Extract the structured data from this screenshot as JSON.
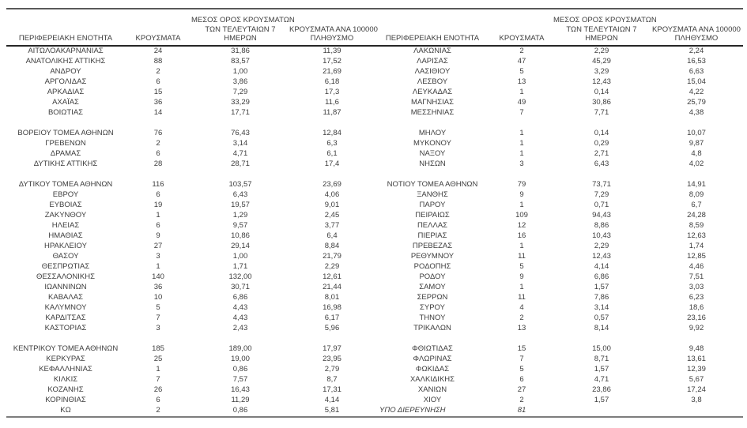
{
  "table": {
    "column_headers": {
      "region": "ΠΕΡΙΦΕΡΕΙΑΚΗ ΕΝΟΤΗΤΑ",
      "cases": "ΚΡΟΥΣΜΑΤΑ",
      "avg7_line1": "ΜΕΣΟΣ ΟΡΟΣ ΚΡΟΥΣΜΑΤΩΝ",
      "avg7_line2": "ΤΩΝ ΤΕΛΕΥΤΑΙΩΝ 7",
      "avg7_line3": "ΗΜΕΡΩΝ",
      "per100k_line1": "ΚΡΟΥΣΜΑΤΑ ΑΝΑ 100000",
      "per100k_line2": "ΠΛΗΘΥΣΜΟ"
    },
    "rows": [
      {
        "left": {
          "region": "ΑΙΤΩΛΟΑΚΑΡΝΑΝΙΑΣ",
          "cases": "24",
          "avg7": "31,86",
          "per100k": "11,39"
        },
        "right": {
          "region": "ΛΑΚΩΝΙΑΣ",
          "cases": "2",
          "avg7": "2,29",
          "per100k": "2,24"
        }
      },
      {
        "left": {
          "region": "ΑΝΑΤΟΛΙΚΗΣ ΑΤΤΙΚΗΣ",
          "cases": "88",
          "avg7": "83,57",
          "per100k": "17,52"
        },
        "right": {
          "region": "ΛΑΡΙΣΑΣ",
          "cases": "47",
          "avg7": "45,29",
          "per100k": "16,53"
        }
      },
      {
        "left": {
          "region": "ΑΝΔΡΟΥ",
          "cases": "2",
          "avg7": "1,00",
          "per100k": "21,69"
        },
        "right": {
          "region": "ΛΑΣΙΘΙΟΥ",
          "cases": "5",
          "avg7": "3,29",
          "per100k": "6,63"
        }
      },
      {
        "left": {
          "region": "ΑΡΓΟΛΙΔΑΣ",
          "cases": "6",
          "avg7": "3,86",
          "per100k": "6,18"
        },
        "right": {
          "region": "ΛΕΣΒΟΥ",
          "cases": "13",
          "avg7": "12,43",
          "per100k": "15,04"
        }
      },
      {
        "left": {
          "region": "ΑΡΚΑΔΙΑΣ",
          "cases": "15",
          "avg7": "7,29",
          "per100k": "17,3"
        },
        "right": {
          "region": "ΛΕΥΚΑΔΑΣ",
          "cases": "1",
          "avg7": "0,14",
          "per100k": "4,22"
        }
      },
      {
        "left": {
          "region": "ΑΧΑΪΑΣ",
          "cases": "36",
          "avg7": "33,29",
          "per100k": "11,6"
        },
        "right": {
          "region": "ΜΑΓΝΗΣΙΑΣ",
          "cases": "49",
          "avg7": "30,86",
          "per100k": "25,79"
        }
      },
      {
        "left": {
          "region": "ΒΟΙΩΤΙΑΣ",
          "cases": "14",
          "avg7": "17,71",
          "per100k": "11,87"
        },
        "right": {
          "region": "ΜΕΣΣΗΝΙΑΣ",
          "cases": "7",
          "avg7": "7,71",
          "per100k": "4,38"
        }
      },
      {
        "separator": true
      },
      {
        "left": {
          "region": "ΒΟΡΕΙΟΥ ΤΟΜΕΑ ΑΘΗΝΩΝ",
          "cases": "76",
          "avg7": "76,43",
          "per100k": "12,84"
        },
        "right": {
          "region": "ΜΗΛΟΥ",
          "cases": "1",
          "avg7": "0,14",
          "per100k": "10,07"
        }
      },
      {
        "left": {
          "region": "ΓΡΕΒΕΝΩΝ",
          "cases": "2",
          "avg7": "3,14",
          "per100k": "6,3"
        },
        "right": {
          "region": "ΜΥΚΟΝΟΥ",
          "cases": "1",
          "avg7": "0,29",
          "per100k": "9,87"
        }
      },
      {
        "left": {
          "region": "ΔΡΑΜΑΣ",
          "cases": "6",
          "avg7": "4,71",
          "per100k": "6,1"
        },
        "right": {
          "region": "ΝΑΞΟΥ",
          "cases": "1",
          "avg7": "2,71",
          "per100k": "4,8"
        }
      },
      {
        "left": {
          "region": "ΔΥΤΙΚΗΣ ΑΤΤΙΚΗΣ",
          "cases": "28",
          "avg7": "28,71",
          "per100k": "17,4"
        },
        "right": {
          "region": "ΝΗΣΩΝ",
          "cases": "3",
          "avg7": "6,43",
          "per100k": "4,02"
        }
      },
      {
        "separator": true
      },
      {
        "left": {
          "region": "ΔΥΤΙΚΟΥ ΤΟΜΕΑ ΑΘΗΝΩΝ",
          "cases": "116",
          "avg7": "103,57",
          "per100k": "23,69"
        },
        "right": {
          "region": "ΝΟΤΙΟΥ ΤΟΜΕΑ ΑΘΗΝΩΝ",
          "cases": "79",
          "avg7": "73,71",
          "per100k": "14,91"
        }
      },
      {
        "left": {
          "region": "ΕΒΡΟΥ",
          "cases": "6",
          "avg7": "6,43",
          "per100k": "4,06"
        },
        "right": {
          "region": "ΞΑΝΘΗΣ",
          "cases": "9",
          "avg7": "7,29",
          "per100k": "8,09"
        }
      },
      {
        "left": {
          "region": "ΕΥΒΟΙΑΣ",
          "cases": "19",
          "avg7": "19,57",
          "per100k": "9,01"
        },
        "right": {
          "region": "ΠΑΡΟΥ",
          "cases": "1",
          "avg7": "0,71",
          "per100k": "6,7"
        }
      },
      {
        "left": {
          "region": "ΖΑΚΥΝΘΟΥ",
          "cases": "1",
          "avg7": "1,29",
          "per100k": "2,45"
        },
        "right": {
          "region": "ΠΕΙΡΑΙΩΣ",
          "cases": "109",
          "avg7": "94,43",
          "per100k": "24,28"
        }
      },
      {
        "left": {
          "region": "ΗΛΕΙΑΣ",
          "cases": "6",
          "avg7": "9,57",
          "per100k": "3,77"
        },
        "right": {
          "region": "ΠΕΛΛΑΣ",
          "cases": "12",
          "avg7": "8,86",
          "per100k": "8,59"
        }
      },
      {
        "left": {
          "region": "ΗΜΑΘΙΑΣ",
          "cases": "9",
          "avg7": "10,86",
          "per100k": "6,4"
        },
        "right": {
          "region": "ΠΙΕΡΙΑΣ",
          "cases": "16",
          "avg7": "10,43",
          "per100k": "12,63"
        }
      },
      {
        "left": {
          "region": "ΗΡΑΚΛΕΙΟΥ",
          "cases": "27",
          "avg7": "29,14",
          "per100k": "8,84"
        },
        "right": {
          "region": "ΠΡΕΒΕΖΑΣ",
          "cases": "1",
          "avg7": "2,29",
          "per100k": "1,74"
        }
      },
      {
        "left": {
          "region": "ΘΑΣΟΥ",
          "cases": "3",
          "avg7": "1,00",
          "per100k": "21,79"
        },
        "right": {
          "region": "ΡΕΘΥΜΝΟΥ",
          "cases": "11",
          "avg7": "12,43",
          "per100k": "12,85"
        }
      },
      {
        "left": {
          "region": "ΘΕΣΠΡΩΤΙΑΣ",
          "cases": "1",
          "avg7": "1,71",
          "per100k": "2,29"
        },
        "right": {
          "region": "ΡΟΔΟΠΗΣ",
          "cases": "5",
          "avg7": "4,14",
          "per100k": "4,46"
        }
      },
      {
        "left": {
          "region": "ΘΕΣΣΑΛΟΝΙΚΗΣ",
          "cases": "140",
          "avg7": "132,00",
          "per100k": "12,61"
        },
        "right": {
          "region": "ΡΟΔΟΥ",
          "cases": "9",
          "avg7": "6,86",
          "per100k": "7,51"
        }
      },
      {
        "left": {
          "region": "ΙΩΑΝΝΙΝΩΝ",
          "cases": "36",
          "avg7": "30,71",
          "per100k": "21,44"
        },
        "right": {
          "region": "ΣΑΜΟΥ",
          "cases": "1",
          "avg7": "1,57",
          "per100k": "3,03"
        }
      },
      {
        "left": {
          "region": "ΚΑΒΑΛΑΣ",
          "cases": "10",
          "avg7": "6,86",
          "per100k": "8,01"
        },
        "right": {
          "region": "ΣΕΡΡΩΝ",
          "cases": "11",
          "avg7": "7,86",
          "per100k": "6,23"
        }
      },
      {
        "left": {
          "region": "ΚΑΛΥΜΝΟΥ",
          "cases": "5",
          "avg7": "4,43",
          "per100k": "16,98"
        },
        "right": {
          "region": "ΣΥΡΟΥ",
          "cases": "4",
          "avg7": "3,14",
          "per100k": "18,6"
        }
      },
      {
        "left": {
          "region": "ΚΑΡΔΙΤΣΑΣ",
          "cases": "7",
          "avg7": "4,43",
          "per100k": "6,17"
        },
        "right": {
          "region": "ΤΗΝΟΥ",
          "cases": "2",
          "avg7": "0,57",
          "per100k": "23,16"
        }
      },
      {
        "left": {
          "region": "ΚΑΣΤΟΡΙΑΣ",
          "cases": "3",
          "avg7": "2,43",
          "per100k": "5,96"
        },
        "right": {
          "region": "ΤΡΙΚΑΛΩΝ",
          "cases": "13",
          "avg7": "8,14",
          "per100k": "9,92"
        }
      },
      {
        "separator": true
      },
      {
        "left": {
          "region": "ΚΕΝΤΡΙΚΟΥ ΤΟΜΕΑ ΑΘΗΝΩΝ",
          "cases": "185",
          "avg7": "189,00",
          "per100k": "17,97"
        },
        "right": {
          "region": "ΦΘΙΩΤΙΔΑΣ",
          "cases": "15",
          "avg7": "15,00",
          "per100k": "9,48"
        }
      },
      {
        "left": {
          "region": "ΚΕΡΚΥΡΑΣ",
          "cases": "25",
          "avg7": "19,00",
          "per100k": "23,95"
        },
        "right": {
          "region": "ΦΛΩΡΙΝΑΣ",
          "cases": "7",
          "avg7": "8,71",
          "per100k": "13,61"
        }
      },
      {
        "left": {
          "region": "ΚΕΦΑΛΛΗΝΙΑΣ",
          "cases": "1",
          "avg7": "0,86",
          "per100k": "2,79"
        },
        "right": {
          "region": "ΦΩΚΙΔΑΣ",
          "cases": "5",
          "avg7": "1,57",
          "per100k": "12,39"
        }
      },
      {
        "left": {
          "region": "ΚΙΛΚΙΣ",
          "cases": "7",
          "avg7": "7,57",
          "per100k": "8,7"
        },
        "right": {
          "region": "ΧΑΛΚΙΔΙΚΗΣ",
          "cases": "6",
          "avg7": "4,71",
          "per100k": "5,67"
        }
      },
      {
        "left": {
          "region": "ΚΟΖΑΝΗΣ",
          "cases": "26",
          "avg7": "16,43",
          "per100k": "17,31"
        },
        "right": {
          "region": "ΧΑΝΙΩΝ",
          "cases": "27",
          "avg7": "23,86",
          "per100k": "17,24"
        }
      },
      {
        "left": {
          "region": "ΚΟΡΙΝΘΙΑΣ",
          "cases": "6",
          "avg7": "11,29",
          "per100k": "4,14"
        },
        "right": {
          "region": "ΧΙΟΥ",
          "cases": "2",
          "avg7": "1,57",
          "per100k": "3,8"
        }
      },
      {
        "left": {
          "region": "ΚΩ",
          "cases": "2",
          "avg7": "0,86",
          "per100k": "5,81"
        },
        "right": {
          "region": "ΥΠΟ ΔΙΕΡΕΥΝΗΣΗ",
          "cases": "81",
          "avg7": "",
          "per100k": "",
          "italic": true
        }
      }
    ]
  },
  "colors": {
    "background": "#ffffff",
    "text": "#3d3d3d",
    "top_rule": "#595959",
    "header_rule": "#262626",
    "bottom_rule": "#7d7d7d"
  }
}
